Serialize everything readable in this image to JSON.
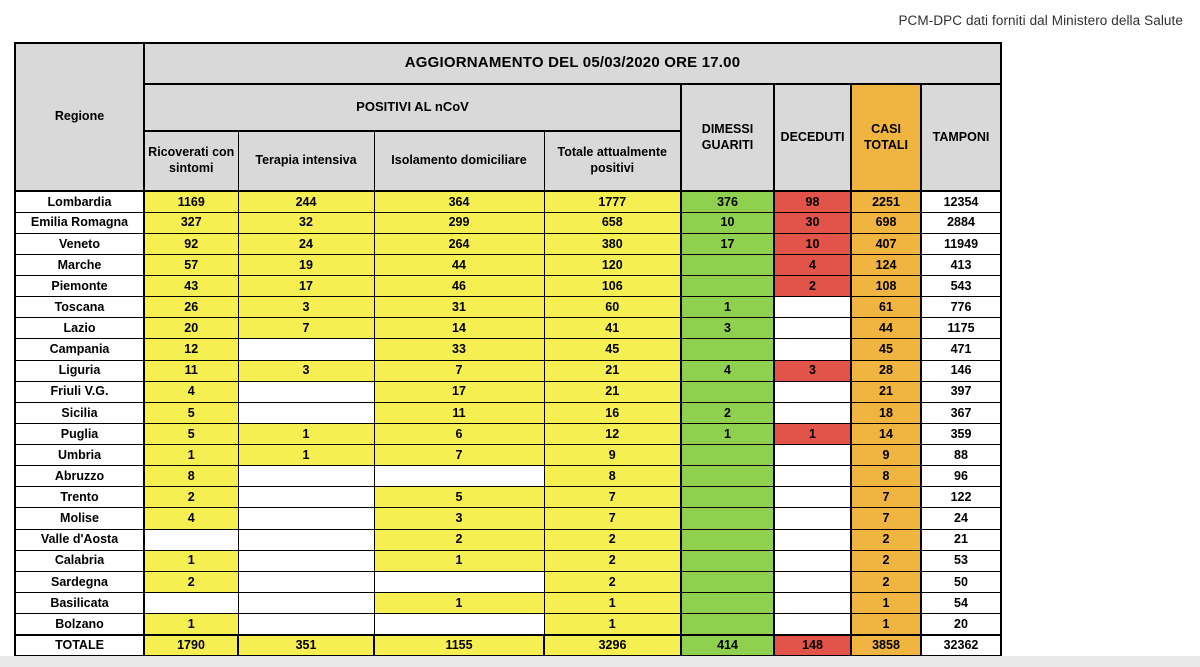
{
  "attribution": "PCM-DPC dati forniti dal Ministero della Salute",
  "table": {
    "title": "AGGIORNAMENTO DEL 05/03/2020 ORE 17.00",
    "region_header": "Regione",
    "group_header": "POSITIVI AL nCoV",
    "sub_headers": [
      "Ricoverati con sintomi",
      "Terapia intensiva",
      "Isolamento domiciliare",
      "Totale attualmente positivi"
    ],
    "col_headers": [
      "DIMESSI GUARITI",
      "DECEDUTI",
      "CASI TOTALI",
      "TAMPONI"
    ],
    "rows": [
      {
        "region": "Lombardia",
        "values": [
          "1169",
          "244",
          "364",
          "1777",
          "376",
          "98",
          "2251",
          "12354"
        ]
      },
      {
        "region": "Emilia Romagna",
        "values": [
          "327",
          "32",
          "299",
          "658",
          "10",
          "30",
          "698",
          "2884"
        ]
      },
      {
        "region": "Veneto",
        "values": [
          "92",
          "24",
          "264",
          "380",
          "17",
          "10",
          "407",
          "11949"
        ]
      },
      {
        "region": "Marche",
        "values": [
          "57",
          "19",
          "44",
          "120",
          "",
          "4",
          "124",
          "413"
        ]
      },
      {
        "region": "Piemonte",
        "values": [
          "43",
          "17",
          "46",
          "106",
          "",
          "2",
          "108",
          "543"
        ]
      },
      {
        "region": "Toscana",
        "values": [
          "26",
          "3",
          "31",
          "60",
          "1",
          "",
          "61",
          "776"
        ]
      },
      {
        "region": "Lazio",
        "values": [
          "20",
          "7",
          "14",
          "41",
          "3",
          "",
          "44",
          "1175"
        ]
      },
      {
        "region": "Campania",
        "values": [
          "12",
          "",
          "33",
          "45",
          "",
          "",
          "45",
          "471"
        ]
      },
      {
        "region": "Liguria",
        "values": [
          "11",
          "3",
          "7",
          "21",
          "4",
          "3",
          "28",
          "146"
        ]
      },
      {
        "region": "Friuli V.G.",
        "values": [
          "4",
          "",
          "17",
          "21",
          "",
          "",
          "21",
          "397"
        ]
      },
      {
        "region": "Sicilia",
        "values": [
          "5",
          "",
          "11",
          "16",
          "2",
          "",
          "18",
          "367"
        ]
      },
      {
        "region": "Puglia",
        "values": [
          "5",
          "1",
          "6",
          "12",
          "1",
          "1",
          "14",
          "359"
        ]
      },
      {
        "region": "Umbria",
        "values": [
          "1",
          "1",
          "7",
          "9",
          "",
          "",
          "9",
          "88"
        ]
      },
      {
        "region": "Abruzzo",
        "values": [
          "8",
          "",
          "",
          "8",
          "",
          "",
          "8",
          "96"
        ]
      },
      {
        "region": "Trento",
        "values": [
          "2",
          "",
          "5",
          "7",
          "",
          "",
          "7",
          "122"
        ]
      },
      {
        "region": "Molise",
        "values": [
          "4",
          "",
          "3",
          "7",
          "",
          "",
          "7",
          "24"
        ]
      },
      {
        "region": "Valle d'Aosta",
        "values": [
          "",
          "",
          "2",
          "2",
          "",
          "",
          "2",
          "21"
        ]
      },
      {
        "region": "Calabria",
        "values": [
          "1",
          "",
          "1",
          "2",
          "",
          "",
          "2",
          "53"
        ]
      },
      {
        "region": "Sardegna",
        "values": [
          "2",
          "",
          "",
          "2",
          "",
          "",
          "2",
          "50"
        ]
      },
      {
        "region": "Basilicata",
        "values": [
          "",
          "",
          "1",
          "1",
          "",
          "",
          "1",
          "54"
        ]
      },
      {
        "region": "Bolzano",
        "values": [
          "1",
          "",
          "",
          "1",
          "",
          "",
          "1",
          "20"
        ]
      }
    ],
    "total_row": {
      "region": "TOTALE",
      "values": [
        "1790",
        "351",
        "1155",
        "3296",
        "414",
        "148",
        "3858",
        "32362"
      ]
    }
  },
  "colors": {
    "yellow": "#F6EF52",
    "green": "#90D04F",
    "red": "#E2544A",
    "orange": "#F0B440",
    "header_grey": "#D9D9D9",
    "strip_grey": "#E9E9E9"
  }
}
